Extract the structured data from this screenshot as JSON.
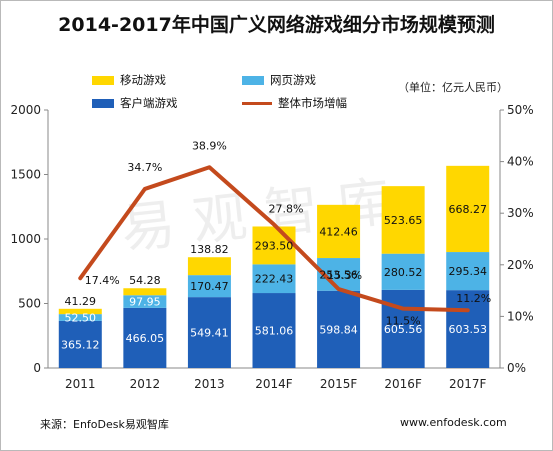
{
  "page": {
    "title": "2014-2017年中国广义网络游戏细分市场规模预测",
    "unit_note": "（单位：亿元人民币）",
    "source": "来源：EnfoDesk易观智库",
    "website": "www.enfodesk.com",
    "watermark": "易观智库"
  },
  "colors": {
    "client": "#1f5fb8",
    "web": "#4db3e6",
    "mobile": "#ffd700",
    "growth_line": "#c44a1d"
  },
  "chart_data": {
    "type": "bar",
    "stacked": true,
    "title": "2014-2017年中国广义网络游戏细分市场规模预测",
    "categories": [
      "2011",
      "2012",
      "2013",
      "2014F",
      "2015F",
      "2016F",
      "2017F"
    ],
    "series": [
      {
        "name": "客户端游戏",
        "values": [
          365.12,
          466.05,
          549.41,
          581.06,
          598.84,
          605.56,
          603.53
        ]
      },
      {
        "name": "网页游戏",
        "values": [
          52.5,
          97.95,
          170.47,
          222.43,
          253.56,
          280.52,
          295.34
        ]
      },
      {
        "name": "移动游戏",
        "values": [
          41.29,
          54.28,
          138.82,
          293.5,
          412.46,
          523.65,
          668.27
        ]
      }
    ],
    "series_labels": [
      [
        "365.12",
        "466.05",
        "549.41",
        "581.06",
        "598.84",
        "605.56",
        "603.53"
      ],
      [
        "52.50",
        "97.95",
        "170.47",
        "222.43",
        "253.56",
        "280.52",
        "295.34"
      ],
      [
        "41.29",
        "54.28",
        "138.82",
        "293.50",
        "412.46",
        "523.65",
        "668.27"
      ]
    ],
    "line": {
      "name": "整体市场增幅",
      "values": [
        17.4,
        34.7,
        38.9,
        27.8,
        15.3,
        11.5,
        11.2
      ],
      "labels": [
        "17.4%",
        "34.7%",
        "38.9%",
        "27.8%",
        "15.3%",
        "11.5%",
        "11.2%"
      ]
    },
    "ylim_left": [
      0,
      2000
    ],
    "yticks_left": [
      "0",
      "500",
      "1000",
      "1500",
      "2000"
    ],
    "ylim_right": [
      0,
      50
    ],
    "yticks_right": [
      "0%",
      "10%",
      "20%",
      "30%",
      "40%",
      "50%"
    ],
    "grid": false,
    "legend_position": "top"
  }
}
